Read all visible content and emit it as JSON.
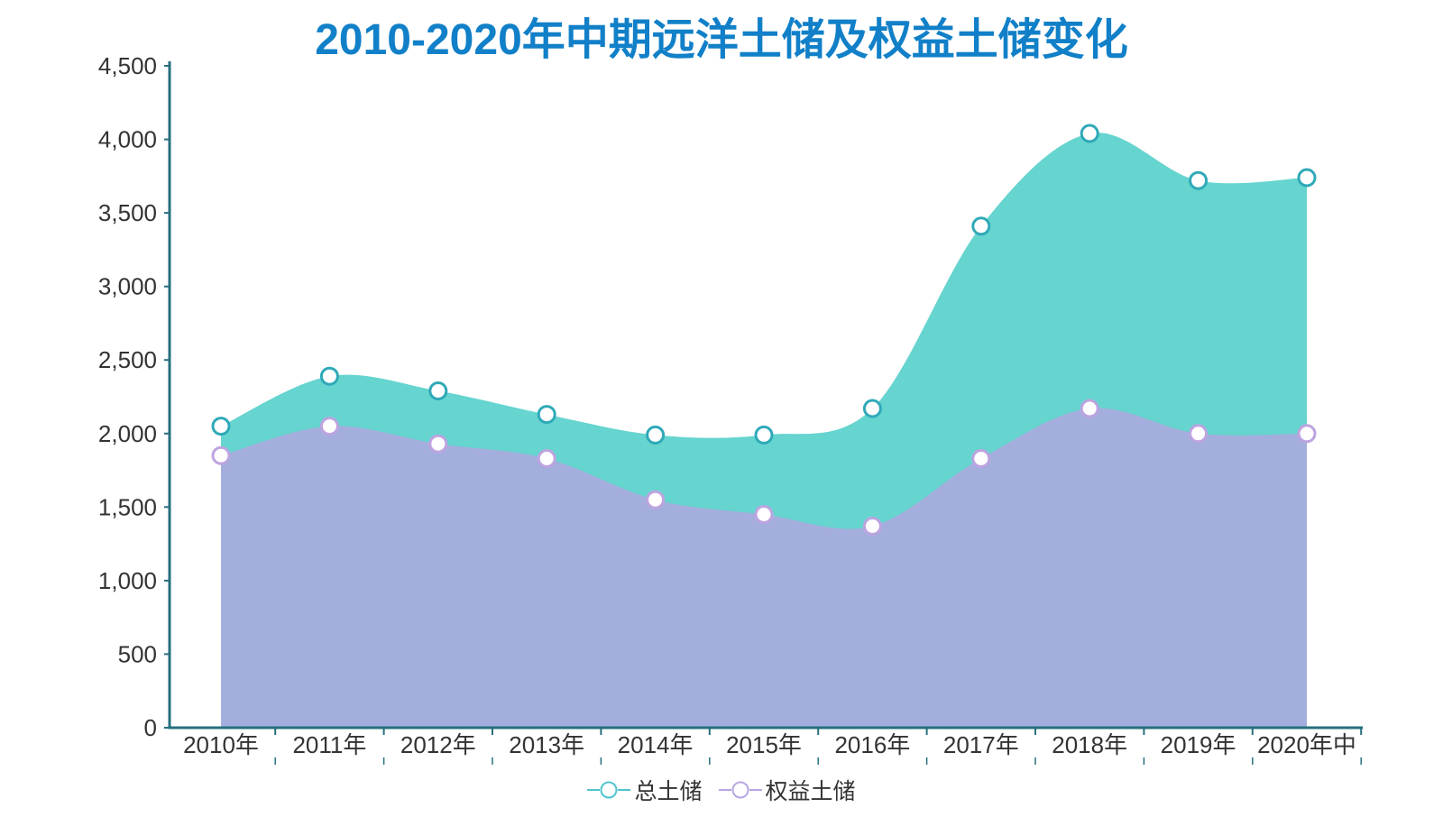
{
  "chart_data": {
    "type": "area",
    "title": "2010-2020年中期远洋土储及权益土储变化",
    "title_color": "#1180c8",
    "categories": [
      "2010年",
      "2011年",
      "2012年",
      "2013年",
      "2014年",
      "2015年",
      "2016年",
      "2017年",
      "2018年",
      "2019年",
      "2020年中"
    ],
    "series": [
      {
        "name": "总土储",
        "values": [
          2050,
          2390,
          2290,
          2130,
          1990,
          1990,
          2170,
          3410,
          4040,
          3720,
          3740
        ],
        "fill": "#66d4cf",
        "marker_stroke": "#2fa9b8",
        "legend_color": "#4fc4cd"
      },
      {
        "name": "权益土储",
        "values": [
          1850,
          2050,
          1930,
          1830,
          1550,
          1450,
          1370,
          1830,
          2170,
          2000,
          2000
        ],
        "fill": "#a3aedd",
        "marker_stroke": "#bda4e0",
        "legend_color": "#b7a6e3"
      }
    ],
    "y_tick_values": [
      0,
      500,
      1000,
      1500,
      2000,
      2500,
      3000,
      3500,
      4000,
      4500
    ],
    "y_tick_labels": [
      "0",
      "500",
      "1,000",
      "1,500",
      "2,000",
      "2,500",
      "3,000",
      "3,500",
      "4,000",
      "4,500"
    ],
    "ylim": [
      0,
      4500
    ],
    "grid": "off",
    "legend_position": "bottom",
    "axis_color": "#266f7e",
    "label_color": "#333333",
    "marker_fill": "#ffffff",
    "background": "#ffffff"
  }
}
